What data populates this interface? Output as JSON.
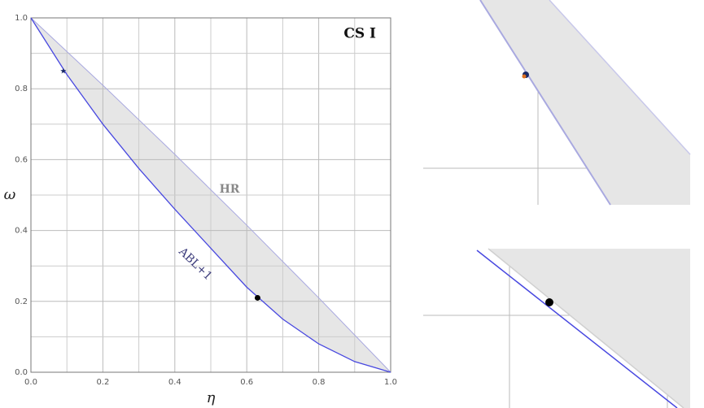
{
  "chart_data": {
    "type": "line",
    "title": "CS I",
    "x_label": "η",
    "y_label": "ω",
    "xlim": [
      0,
      1
    ],
    "ylim": [
      0,
      1
    ],
    "xticks": [
      {
        "value": 0,
        "label": "0.0"
      },
      0.2,
      0.4,
      0.6,
      0.8,
      {
        "value": 1,
        "label": "1.0"
      }
    ],
    "yticks": [
      {
        "value": 0,
        "label": "0.0"
      },
      0.2,
      0.4,
      0.6,
      0.8,
      {
        "value": 1,
        "label": "1.0"
      }
    ],
    "grid": true,
    "fill_between": "#e6e6e6",
    "series": [
      {
        "name": "HR",
        "color": "#a9a9e0",
        "x": [
          0,
          0.2,
          0.4,
          0.6,
          0.8,
          1
        ],
        "values": [
          1,
          0.81,
          0.615,
          0.415,
          0.21,
          0
        ]
      },
      {
        "name": "ABL+1",
        "color": "#4848e0",
        "x": [
          0,
          0.1,
          0.2,
          0.3,
          0.4,
          0.5,
          0.6,
          0.7,
          0.8,
          0.9,
          1
        ],
        "values": [
          1,
          0.84,
          0.7,
          0.575,
          0.46,
          0.35,
          0.24,
          0.15,
          0.08,
          0.03,
          0
        ]
      }
    ],
    "points": [
      {
        "x": 0.09,
        "y": 0.85,
        "marker": "star"
      },
      {
        "x": 0.63,
        "y": 0.21,
        "marker": "dot"
      }
    ]
  }
}
